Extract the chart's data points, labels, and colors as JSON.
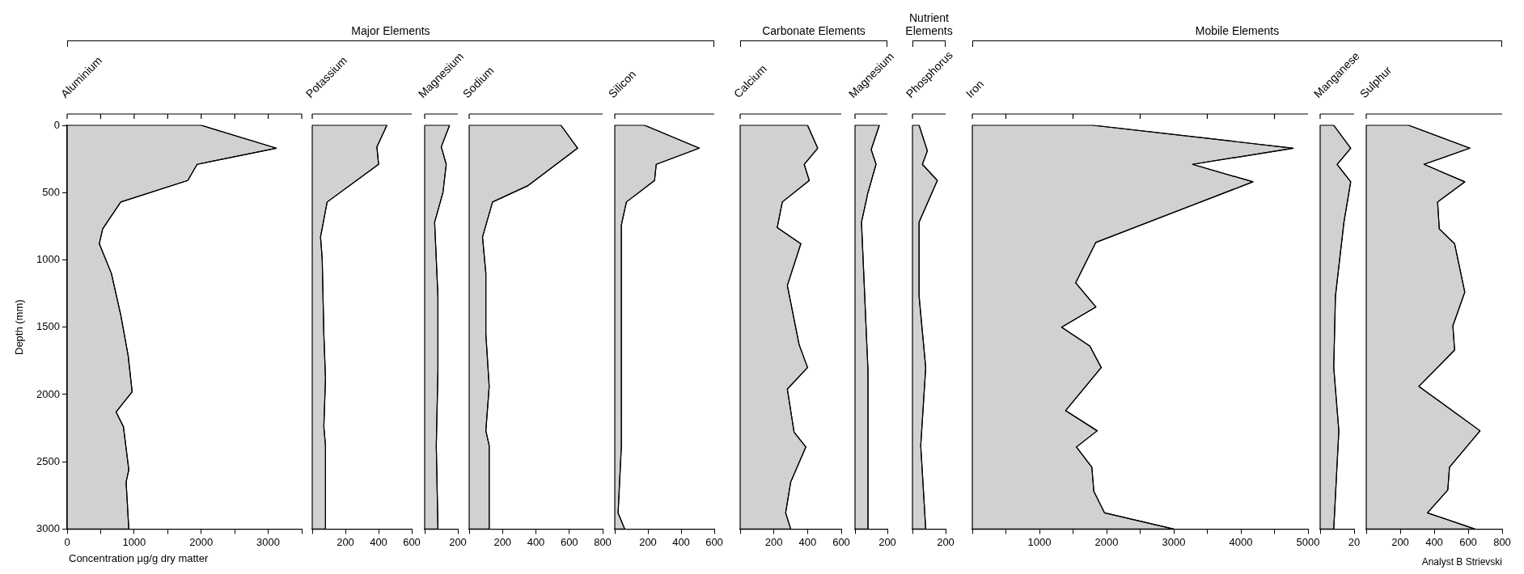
{
  "chart_data": [
    {
      "type": "area",
      "title": "Aluminium",
      "xlabel": "Concentration µg/g dry matter",
      "ylabel": "Depth (mm)",
      "orientation": "horizontal",
      "color": "#000000",
      "x": [
        0,
        170,
        290,
        410,
        570,
        770,
        880,
        1100,
        1410,
        1710,
        1980,
        2130,
        2240,
        2560,
        2650,
        3000
      ],
      "values": [
        2000,
        3120,
        1940,
        1800,
        800,
        530,
        480,
        660,
        800,
        910,
        970,
        730,
        840,
        920,
        880,
        920
      ],
      "xlim": [
        0,
        3500
      ],
      "xticks": [
        0,
        {
          "value": 500,
          "label": null
        },
        1000,
        {
          "value": 1500,
          "label": null
        },
        2000,
        {
          "value": 2500,
          "label": null
        },
        3000,
        {
          "value": 3500,
          "label": null
        }
      ],
      "ylim": [
        3000,
        0
      ],
      "yticks": [
        0,
        500,
        1000,
        1500,
        2000,
        2500,
        3000
      ]
    },
    {
      "type": "area",
      "title": "Potassium",
      "annotations": [
        "Major Elements"
      ],
      "orientation": "horizontal",
      "color": "#000000",
      "x": [
        0,
        160,
        290,
        570,
        830,
        990,
        1550,
        1880,
        2240,
        2380,
        3000
      ],
      "values": [
        450,
        390,
        400,
        90,
        50,
        60,
        70,
        80,
        70,
        80,
        80
      ],
      "xlim": [
        0,
        600
      ],
      "xticks": [
        {
          "value": 0,
          "label": null
        },
        200,
        400,
        600
      ],
      "ylim": [
        3000,
        0
      ],
      "tick_labels": "x"
    },
    {
      "type": "area",
      "title": "Magnesium",
      "orientation": "horizontal",
      "color": "#000000",
      "x": [
        0,
        160,
        290,
        500,
        720,
        1270,
        1820,
        2380,
        3000
      ],
      "values": [
        150,
        100,
        130,
        110,
        60,
        80,
        80,
        70,
        80
      ],
      "xlim": [
        0,
        200
      ],
      "xticks": [
        {
          "value": 0,
          "label": null
        },
        200
      ],
      "ylim": [
        3000,
        0
      ],
      "tick_labels": "x"
    },
    {
      "type": "area",
      "title": "Sodium",
      "orientation": "horizontal",
      "color": "#000000",
      "x": [
        0,
        170,
        450,
        570,
        830,
        1100,
        1550,
        1940,
        2270,
        2380,
        3000
      ],
      "values": [
        550,
        650,
        350,
        140,
        80,
        100,
        100,
        120,
        100,
        120,
        120
      ],
      "xlim": [
        0,
        800
      ],
      "xticks": [
        {
          "value": 0,
          "label": null
        },
        200,
        400,
        600,
        800
      ],
      "ylim": [
        3000,
        0
      ],
      "tick_labels": "x"
    },
    {
      "type": "area",
      "title": "Silicon",
      "orientation": "horizontal",
      "color": "#000000",
      "x": [
        0,
        170,
        290,
        410,
        570,
        740,
        1270,
        1820,
        2380,
        2880,
        3000
      ],
      "values": [
        180,
        510,
        250,
        240,
        70,
        40,
        40,
        40,
        40,
        20,
        60
      ],
      "xlim": [
        0,
        600
      ],
      "xticks": [
        {
          "value": 0,
          "label": null
        },
        200,
        400,
        600
      ],
      "ylim": [
        3000,
        0
      ],
      "tick_labels": "x"
    },
    {
      "type": "area",
      "title": "Calcium",
      "annotations": [
        "Carbonate Elements"
      ],
      "orientation": "horizontal",
      "color": "#000000",
      "x": [
        0,
        170,
        290,
        410,
        570,
        760,
        880,
        1190,
        1630,
        1800,
        1960,
        2280,
        2390,
        2650,
        2880,
        3000
      ],
      "values": [
        400,
        460,
        380,
        410,
        250,
        220,
        360,
        280,
        350,
        400,
        280,
        320,
        390,
        300,
        270,
        300
      ],
      "xlim": [
        0,
        600
      ],
      "xticks": [
        {
          "value": 0,
          "label": null
        },
        200,
        400,
        600
      ],
      "ylim": [
        3000,
        0
      ],
      "tick_labels": "x"
    },
    {
      "type": "area",
      "title": "Magnesium",
      "orientation": "horizontal",
      "color": "#000000",
      "x": [
        0,
        180,
        290,
        500,
        720,
        1270,
        1820,
        2380,
        3000
      ],
      "values": [
        150,
        100,
        130,
        80,
        40,
        60,
        80,
        80,
        80
      ],
      "xlim": [
        0,
        200
      ],
      "xticks": [
        {
          "value": 0,
          "label": null
        },
        200
      ],
      "ylim": [
        3000,
        0
      ],
      "tick_labels": "x"
    },
    {
      "type": "area",
      "title": "Phosphorus",
      "annotations": [
        "Nutrient Elements"
      ],
      "orientation": "horizontal",
      "color": "#000000",
      "x": [
        0,
        190,
        290,
        410,
        720,
        1270,
        1800,
        2380,
        3000
      ],
      "values": [
        40,
        90,
        60,
        150,
        40,
        40,
        80,
        50,
        80
      ],
      "xlim": [
        0,
        200
      ],
      "xticks": [
        {
          "value": 0,
          "label": null
        },
        200
      ],
      "ylim": [
        3000,
        0
      ],
      "tick_labels": "x"
    },
    {
      "type": "area",
      "title": "Iron",
      "annotations": [
        "Mobile Elements"
      ],
      "orientation": "horizontal",
      "color": "#000000",
      "x": [
        0,
        170,
        290,
        420,
        870,
        1170,
        1350,
        1500,
        1640,
        1800,
        2120,
        2270,
        2390,
        2540,
        2720,
        2880,
        3000
      ],
      "values": [
        1800,
        4780,
        3280,
        4180,
        1840,
        1540,
        1840,
        1330,
        1750,
        1920,
        1390,
        1860,
        1550,
        1780,
        1810,
        1970,
        3000
      ],
      "xlim": [
        0,
        5000
      ],
      "xticks": [
        {
          "value": 0,
          "label": null
        },
        {
          "value": 500,
          "label": null
        },
        1000,
        {
          "value": 1500,
          "label": null
        },
        2000,
        {
          "value": 2500,
          "label": null
        },
        3000,
        {
          "value": 3500,
          "label": null
        },
        4000,
        {
          "value": 4500,
          "label": null
        },
        5000
      ],
      "ylim": [
        3000,
        0
      ],
      "tick_labels": "x"
    },
    {
      "type": "area",
      "title": "Manganese",
      "orientation": "horizontal",
      "color": "#000000",
      "x": [
        0,
        170,
        290,
        420,
        720,
        1270,
        1800,
        2270,
        3000
      ],
      "values": [
        8,
        18,
        10,
        18,
        14,
        9,
        8,
        11,
        8
      ],
      "xlim": [
        0,
        20
      ],
      "xticks": [
        {
          "value": 0,
          "label": null
        },
        20
      ],
      "ylim": [
        3000,
        0
      ],
      "tick_labels": "x"
    },
    {
      "type": "area",
      "title": "Sulphur",
      "annotations": [
        "Analyst B Strievski"
      ],
      "orientation": "horizontal",
      "color": "#000000",
      "x": [
        0,
        170,
        290,
        420,
        570,
        770,
        880,
        1240,
        1490,
        1670,
        1940,
        2270,
        2540,
        2710,
        2880,
        3000
      ],
      "values": [
        250,
        610,
        340,
        580,
        420,
        430,
        520,
        580,
        510,
        520,
        310,
        670,
        490,
        480,
        360,
        640
      ],
      "xlim": [
        0,
        800
      ],
      "xticks": [
        {
          "value": 0,
          "label": null
        },
        200,
        400,
        600,
        800
      ],
      "ylim": [
        3000,
        0
      ],
      "tick_labels": "x"
    }
  ]
}
